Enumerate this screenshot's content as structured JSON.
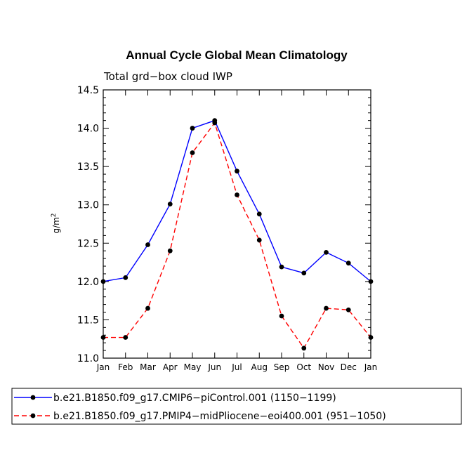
{
  "chart_data": {
    "type": "line",
    "title": "Annual Cycle Global Mean Climatology",
    "subtitle": "Total grd−box cloud IWP",
    "xlabel": "",
    "ylabel": "g/m",
    "ylabel_sup": "2",
    "ylim": [
      11.0,
      14.5
    ],
    "yticks": [
      "11.0",
      "11.5",
      "12.0",
      "12.5",
      "13.0",
      "13.5",
      "14.0",
      "14.5"
    ],
    "categories": [
      "Jan",
      "Feb",
      "Mar",
      "Apr",
      "May",
      "Jun",
      "Jul",
      "Aug",
      "Sep",
      "Oct",
      "Nov",
      "Dec",
      "Jan"
    ],
    "series": [
      {
        "name": "b.e21.B1850.f09_g17.CMIP6−piControl.001 (1150−1199)",
        "color": "#0000ff",
        "dash": "solid",
        "values": [
          12.0,
          12.05,
          12.48,
          13.01,
          14.0,
          14.1,
          13.44,
          12.88,
          12.19,
          12.11,
          12.38,
          12.24,
          12.0
        ]
      },
      {
        "name": "b.e21.B1850.f09_g17.PMIP4−midPliocene−eoi400.001 (951−1050)",
        "color": "#ff0000",
        "dash": "dashed",
        "values": [
          11.27,
          11.27,
          11.65,
          12.4,
          13.68,
          14.07,
          13.13,
          12.54,
          11.55,
          11.13,
          11.65,
          11.63,
          11.27
        ]
      }
    ],
    "legend": "bottom"
  }
}
